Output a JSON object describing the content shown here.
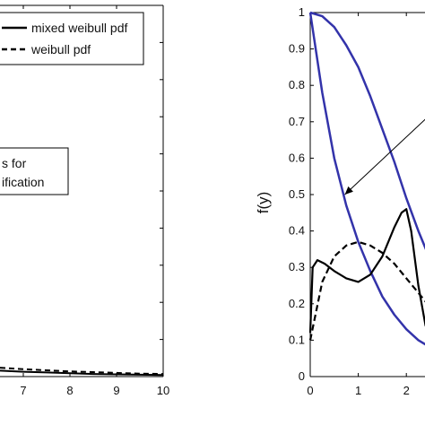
{
  "chart_data": [
    {
      "type": "line",
      "panel": "left",
      "xlim": [
        6.5,
        10
      ],
      "ylim": [
        0,
        1
      ],
      "xticks": [
        7,
        8,
        9,
        10
      ],
      "legend": {
        "placement": "top-right",
        "entries": [
          {
            "label": "mixed weibull pdf",
            "style": "solid"
          },
          {
            "label": "weibull pdf",
            "style": "dashed"
          }
        ]
      },
      "annotation": {
        "lines": [
          "s for",
          "ification"
        ]
      },
      "series": [
        {
          "style": "solid",
          "x": [
            6.5,
            7,
            7.5,
            8,
            8.5,
            9,
            9.5,
            10
          ],
          "y": [
            0.016,
            0.013,
            0.011,
            0.009,
            0.007,
            0.006,
            0.005,
            0.004
          ]
        },
        {
          "style": "dashed",
          "x": [
            6.5,
            7,
            7.5,
            8,
            8.5,
            9,
            9.5,
            10
          ],
          "y": [
            0.024,
            0.02,
            0.017,
            0.014,
            0.012,
            0.01,
            0.008,
            0.007
          ]
        }
      ]
    },
    {
      "type": "line",
      "panel": "right",
      "ylabel": "f(y)",
      "xlim": [
        0,
        2.5
      ],
      "ylim": [
        0,
        1
      ],
      "xticks": [
        0,
        1,
        2
      ],
      "yticks": [
        0,
        0.1,
        0.2,
        0.3,
        0.4,
        0.5,
        0.6,
        0.7,
        0.8,
        0.9,
        1
      ],
      "annotation_arrow": {
        "from": [
          2.5,
          0.72
        ],
        "to": [
          0.72,
          0.5
        ]
      },
      "series": [
        {
          "color": "#3333aa",
          "style": "solid",
          "x": [
            0,
            0.25,
            0.5,
            0.75,
            1,
            1.25,
            1.5,
            1.75,
            2,
            2.25,
            2.5
          ],
          "y": [
            1,
            0.99,
            0.96,
            0.91,
            0.85,
            0.77,
            0.68,
            0.59,
            0.49,
            0.4,
            0.32
          ]
        },
        {
          "color": "#3333aa",
          "style": "solid",
          "x": [
            0,
            0.25,
            0.5,
            0.75,
            1,
            1.25,
            1.5,
            1.75,
            2,
            2.25,
            2.5
          ],
          "y": [
            1,
            0.78,
            0.6,
            0.47,
            0.37,
            0.29,
            0.22,
            0.17,
            0.13,
            0.1,
            0.08
          ]
        },
        {
          "color": "#000000",
          "style": "solid",
          "x": [
            0,
            0.05,
            0.15,
            0.3,
            0.5,
            0.75,
            1,
            1.25,
            1.5,
            1.75,
            1.9,
            2,
            2.1,
            2.25,
            2.4,
            2.5
          ],
          "y": [
            0.12,
            0.3,
            0.32,
            0.31,
            0.29,
            0.27,
            0.26,
            0.28,
            0.33,
            0.41,
            0.45,
            0.46,
            0.4,
            0.25,
            0.14,
            0.12
          ]
        },
        {
          "color": "#000000",
          "style": "dashed",
          "x": [
            0,
            0.25,
            0.5,
            0.75,
            1,
            1.25,
            1.5,
            1.75,
            2,
            2.25,
            2.5
          ],
          "y": [
            0.1,
            0.26,
            0.33,
            0.36,
            0.37,
            0.36,
            0.34,
            0.31,
            0.27,
            0.23,
            0.19
          ]
        }
      ]
    }
  ]
}
